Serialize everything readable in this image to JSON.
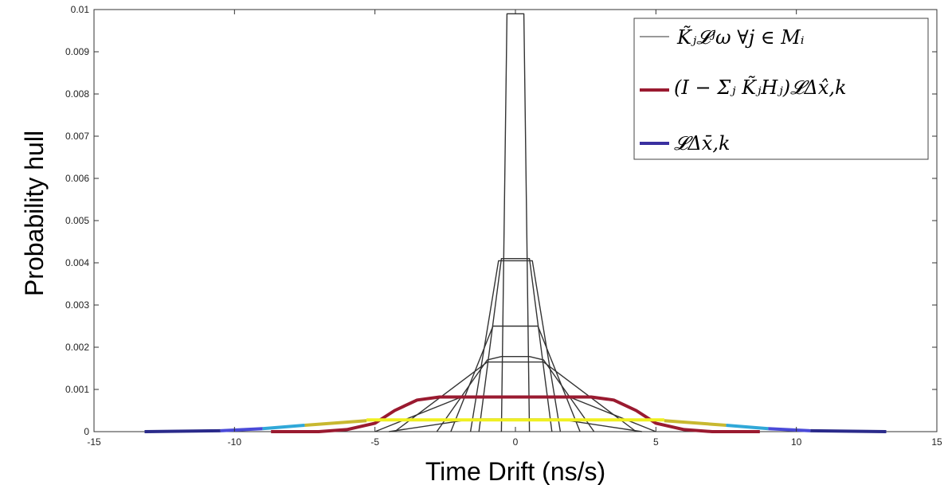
{
  "chart_data": {
    "type": "line",
    "xlabel": "Time Drift (ns/s)",
    "ylabel": "Probability hull",
    "xlim": [
      -15,
      15
    ],
    "ylim": [
      0,
      0.01
    ],
    "xticks": [
      -15,
      -10,
      -5,
      0,
      5,
      10,
      15
    ],
    "xtick_labels": [
      "-15",
      "-10",
      "-5",
      "0",
      "5",
      "10",
      "15"
    ],
    "yticks": [
      0,
      0.001,
      0.002,
      0.003,
      0.004,
      0.005,
      0.006,
      0.007,
      0.008,
      0.009,
      0.01
    ],
    "ytick_labels": [
      "0",
      "0.001",
      "0.002",
      "0.003",
      "0.004",
      "0.005",
      "0.006",
      "0.007",
      "0.008",
      "0.009",
      "0.01"
    ],
    "grid": false,
    "legend_position": "top-right",
    "legend": [
      {
        "label": "K̃ⱼ𝓛ʲω ∀j ∈ Mᵢ",
        "color": "#333333"
      },
      {
        "label": "(I − Σⱼ K̃ⱼHⱼ)𝓛Δx̂,k",
        "color": "#9a1a30"
      },
      {
        "label": "𝓛Δx̄,k",
        "color": "#3a30a0"
      }
    ],
    "colors": {
      "gray": "#333333",
      "red": "#9a1a30",
      "navy": "#2a2a8a",
      "blue": "#4a4ad8",
      "cyan": "#30a8d8",
      "olive": "#c8b830",
      "yellow": "#f0f020"
    },
    "series": [
      {
        "group": "gray",
        "x": [
          -0.5,
          -0.3,
          0.3,
          0.5
        ],
        "y": [
          0,
          0.0099,
          0.0099,
          0
        ]
      },
      {
        "group": "gray",
        "x": [
          -1.3,
          -0.5,
          0.5,
          1.3
        ],
        "y": [
          0,
          0.0041,
          0.0041,
          0
        ]
      },
      {
        "group": "gray",
        "x": [
          -1.6,
          -0.6,
          0.6,
          1.6
        ],
        "y": [
          0,
          0.00405,
          0.00405,
          0
        ]
      },
      {
        "group": "gray",
        "x": [
          -2.3,
          -0.8,
          0.8,
          2.3
        ],
        "y": [
          0,
          0.0025,
          0.0025,
          0
        ]
      },
      {
        "group": "gray",
        "x": [
          -2.8,
          -1.0,
          -0.5,
          0.5,
          1.0,
          2.8
        ],
        "y": [
          0,
          0.0017,
          0.00178,
          0.00178,
          0.0017,
          0
        ]
      },
      {
        "group": "gray",
        "x": [
          -4.3,
          -1.0,
          1.0,
          4.3
        ],
        "y": [
          0,
          0.00165,
          0.00165,
          0
        ]
      },
      {
        "group": "gray",
        "x": [
          -5.0,
          -2.0,
          2.0,
          5.0
        ],
        "y": [
          0,
          0.0008,
          0.0008,
          0
        ]
      },
      {
        "group": "gray",
        "x": [
          -4.5,
          -1.5,
          1.5,
          4.5
        ],
        "y": [
          0,
          0.0003,
          0.0003,
          0
        ]
      },
      {
        "group": "red",
        "x": [
          -8.7,
          -7.0,
          -6.0,
          -5.0,
          -4.3,
          -3.5,
          -2.7,
          2.7,
          3.5,
          4.3,
          5.0,
          6.0,
          7.0,
          8.7
        ],
        "y": [
          0,
          0,
          5e-05,
          0.0002,
          0.0005,
          0.00075,
          0.00082,
          0.00082,
          0.00075,
          0.0005,
          0.0002,
          5e-05,
          0,
          0
        ]
      },
      {
        "group": "navy",
        "x": [
          -13.2,
          -10.5
        ],
        "y": [
          0,
          2e-05
        ]
      },
      {
        "group": "blue",
        "x": [
          -10.5,
          -9.0
        ],
        "y": [
          2e-05,
          7e-05
        ]
      },
      {
        "group": "cyan",
        "x": [
          -9.0,
          -7.5
        ],
        "y": [
          7e-05,
          0.00015
        ]
      },
      {
        "group": "olive",
        "x": [
          -7.5,
          -5.3
        ],
        "y": [
          0.00015,
          0.00026
        ]
      },
      {
        "group": "yellow",
        "x": [
          -5.3,
          5.3
        ],
        "y": [
          0.00028,
          0.00028
        ]
      },
      {
        "group": "olive",
        "x": [
          5.3,
          7.5
        ],
        "y": [
          0.00026,
          0.00015
        ]
      },
      {
        "group": "cyan",
        "x": [
          7.5,
          9.0
        ],
        "y": [
          0.00015,
          7e-05
        ]
      },
      {
        "group": "blue",
        "x": [
          9.0,
          10.5
        ],
        "y": [
          7e-05,
          2e-05
        ]
      },
      {
        "group": "navy",
        "x": [
          10.5,
          13.2
        ],
        "y": [
          2e-05,
          0
        ]
      }
    ]
  }
}
